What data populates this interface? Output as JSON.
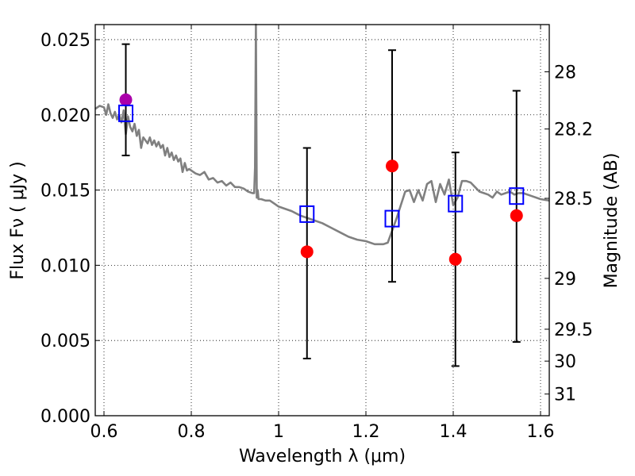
{
  "chart_data": {
    "type": "scatter",
    "xlabel": "Wavelength  λ (μm)",
    "ylabel": "Flux  Fν  ( μJy )",
    "y2label": "Magnitude (AB)",
    "xlim": [
      0.58,
      1.62
    ],
    "ylim": [
      0.0,
      0.026
    ],
    "grid": true,
    "x_ticks": [
      0.6,
      0.8,
      1.0,
      1.2,
      1.4,
      1.6
    ],
    "x_tick_labels": [
      "0.6",
      "0.8",
      "1",
      "1.2",
      "1.4",
      "1.6"
    ],
    "y_ticks": [
      0.0,
      0.005,
      0.01,
      0.015,
      0.02,
      0.025
    ],
    "y_tick_labels": [
      "0.000",
      "0.005",
      "0.010",
      "0.015",
      "0.020",
      "0.025"
    ],
    "y2_ticks": [
      {
        "label": "28",
        "flux": 0.02286
      },
      {
        "label": "28.2",
        "flux": 0.01906
      },
      {
        "label": "28.5",
        "flux": 0.01445
      },
      {
        "label": "29",
        "flux": 0.00913
      },
      {
        "label": "29.5",
        "flux": 0.00575
      },
      {
        "label": "30",
        "flux": 0.00363
      },
      {
        "label": "31",
        "flux": 0.00144
      }
    ],
    "colors": {
      "model": "#808080",
      "observed": "#ff0000",
      "observed_first": "#aa00aa",
      "synthetic": "#0000ff",
      "errorbar": "#000000"
    },
    "model_spectrum": {
      "name": "",
      "x": [
        0.58,
        0.59,
        0.6,
        0.605,
        0.61,
        0.615,
        0.62,
        0.625,
        0.63,
        0.635,
        0.64,
        0.645,
        0.65,
        0.655,
        0.66,
        0.665,
        0.67,
        0.675,
        0.68,
        0.685,
        0.69,
        0.695,
        0.7,
        0.705,
        0.71,
        0.715,
        0.72,
        0.725,
        0.73,
        0.735,
        0.74,
        0.745,
        0.75,
        0.755,
        0.76,
        0.765,
        0.77,
        0.775,
        0.78,
        0.785,
        0.79,
        0.795,
        0.8,
        0.81,
        0.82,
        0.83,
        0.84,
        0.85,
        0.86,
        0.87,
        0.88,
        0.89,
        0.9,
        0.91,
        0.92,
        0.93,
        0.94,
        0.944,
        0.946,
        0.948,
        0.95,
        0.952,
        0.954,
        0.96,
        0.97,
        0.98,
        0.99,
        1.0,
        1.03,
        1.05,
        1.08,
        1.1,
        1.12,
        1.14,
        1.16,
        1.18,
        1.2,
        1.22,
        1.24,
        1.25,
        1.26,
        1.27,
        1.28,
        1.29,
        1.3,
        1.31,
        1.32,
        1.33,
        1.34,
        1.35,
        1.36,
        1.37,
        1.38,
        1.39,
        1.4,
        1.41,
        1.42,
        1.43,
        1.44,
        1.45,
        1.46,
        1.47,
        1.48,
        1.49,
        1.5,
        1.51,
        1.52,
        1.53,
        1.54,
        1.55,
        1.56,
        1.58,
        1.6,
        1.62
      ],
      "y": [
        0.0204,
        0.0206,
        0.0205,
        0.02,
        0.0207,
        0.0201,
        0.0198,
        0.0202,
        0.0197,
        0.02,
        0.0195,
        0.0203,
        0.0187,
        0.0199,
        0.0192,
        0.0189,
        0.0194,
        0.0186,
        0.019,
        0.0178,
        0.0185,
        0.0183,
        0.0181,
        0.0185,
        0.018,
        0.0183,
        0.0179,
        0.0182,
        0.0178,
        0.018,
        0.0173,
        0.0178,
        0.0172,
        0.0175,
        0.017,
        0.0173,
        0.0169,
        0.0171,
        0.0162,
        0.0168,
        0.0163,
        0.0164,
        0.0163,
        0.0161,
        0.016,
        0.0162,
        0.0157,
        0.0158,
        0.0155,
        0.0156,
        0.0153,
        0.0155,
        0.0152,
        0.0152,
        0.0151,
        0.0149,
        0.0148,
        0.0148,
        0.0165,
        0.0265,
        0.0145,
        0.015,
        0.0144,
        0.0144,
        0.0143,
        0.0143,
        0.0141,
        0.0139,
        0.0136,
        0.0133,
        0.013,
        0.0128,
        0.0125,
        0.0122,
        0.0119,
        0.0117,
        0.0116,
        0.0114,
        0.0114,
        0.0115,
        0.0123,
        0.0131,
        0.014,
        0.0149,
        0.015,
        0.0142,
        0.015,
        0.0143,
        0.0154,
        0.0156,
        0.0142,
        0.0154,
        0.0147,
        0.0157,
        0.014,
        0.0145,
        0.0156,
        0.0156,
        0.0155,
        0.0152,
        0.0149,
        0.0148,
        0.0147,
        0.0145,
        0.0149,
        0.0147,
        0.0148,
        0.0149,
        0.0147,
        0.0148,
        0.0148,
        0.0146,
        0.0144,
        0.0143
      ]
    },
    "observed": {
      "name": "",
      "x": [
        0.65,
        1.065,
        1.26,
        1.405,
        1.545
      ],
      "y": [
        0.021,
        0.0109,
        0.0166,
        0.0104,
        0.0133
      ],
      "err_low": [
        0.0173,
        0.0038,
        0.0089,
        0.0033,
        0.0049
      ],
      "err_high": [
        0.0247,
        0.0178,
        0.0243,
        0.0175,
        0.0216
      ]
    },
    "synthetic": {
      "name": "",
      "x": [
        0.65,
        1.065,
        1.26,
        1.405,
        1.545
      ],
      "y": [
        0.0201,
        0.0134,
        0.0131,
        0.0141,
        0.0146
      ]
    }
  }
}
